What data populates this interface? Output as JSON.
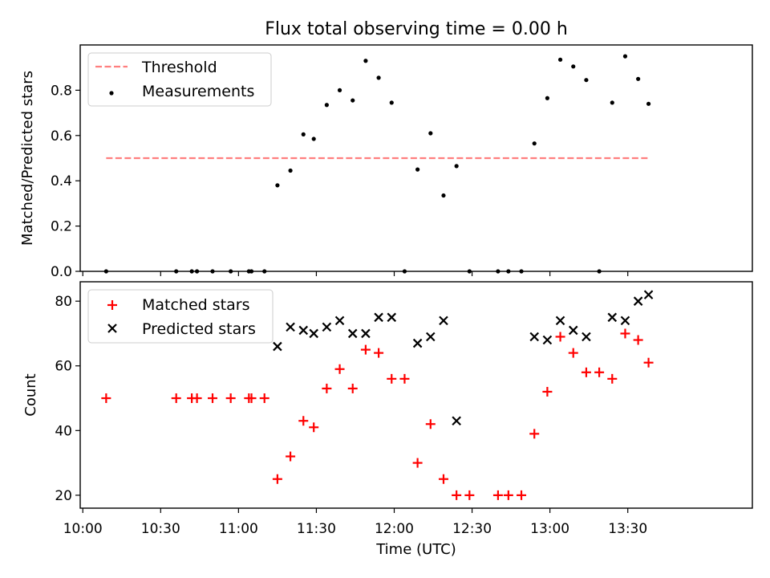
{
  "chart_data": {
    "title": "Flux total observing time = 0.00 h",
    "xlabel": "Time (UTC)",
    "x_ticks": [
      "10:00",
      "10:30",
      "11:00",
      "11:30",
      "12:00",
      "12:30",
      "13:00",
      "13:30"
    ],
    "x_range": [
      "09:59",
      "14:18"
    ],
    "panels": [
      {
        "type": "scatter",
        "ylabel": "Matched/Predicted stars",
        "ylim": [
          0,
          1.0
        ],
        "y_ticks": [
          "0.0",
          "0.2",
          "0.4",
          "0.6",
          "0.8"
        ],
        "legend": {
          "placement": "top-left"
        },
        "series": [
          {
            "name": "Threshold",
            "style": "dashed-line",
            "color": "#ff7f7f",
            "x": [
              "10:09",
              "13:38"
            ],
            "y": [
              0.5,
              0.5
            ]
          },
          {
            "name": "Measurements",
            "style": "dot",
            "color": "#000000",
            "x": [
              "10:09",
              "10:36",
              "10:42",
              "10:44",
              "10:50",
              "10:57",
              "11:04",
              "11:05",
              "11:10",
              "11:15",
              "11:20",
              "11:25",
              "11:29",
              "11:34",
              "11:39",
              "11:44",
              "11:49",
              "11:54",
              "11:59",
              "12:04",
              "12:09",
              "12:14",
              "12:19",
              "12:24",
              "12:29",
              "12:40",
              "12:44",
              "12:49",
              "12:54",
              "12:59",
              "13:04",
              "13:09",
              "13:14",
              "13:19",
              "13:24",
              "13:29",
              "13:34",
              "13:38"
            ],
            "y": [
              0.0,
              0.0,
              0.0,
              0.0,
              0.0,
              0.0,
              0.0,
              0.0,
              0.0,
              0.38,
              0.445,
              0.605,
              0.585,
              0.735,
              0.8,
              0.755,
              0.93,
              0.855,
              0.745,
              0.0,
              0.45,
              0.61,
              0.335,
              0.465,
              0.0,
              0.0,
              0.0,
              0.0,
              0.565,
              0.765,
              0.935,
              0.905,
              0.845,
              0.0,
              0.745,
              0.95,
              0.85,
              0.74
            ]
          }
        ]
      },
      {
        "type": "scatter",
        "ylabel": "Count",
        "ylim": [
          16,
          86
        ],
        "y_ticks": [
          "20",
          "40",
          "60",
          "80"
        ],
        "legend": {
          "placement": "top-left"
        },
        "series": [
          {
            "name": "Matched stars",
            "marker": "+",
            "color": "#ff0000",
            "x": [
              "10:09",
              "10:36",
              "10:42",
              "10:44",
              "10:50",
              "10:57",
              "11:04",
              "11:05",
              "11:10",
              "11:15",
              "11:20",
              "11:25",
              "11:29",
              "11:34",
              "11:39",
              "11:44",
              "11:49",
              "11:54",
              "11:59",
              "12:04",
              "12:09",
              "12:14",
              "12:19",
              "12:24",
              "12:29",
              "12:40",
              "12:44",
              "12:49",
              "12:54",
              "12:59",
              "13:04",
              "13:09",
              "13:14",
              "13:19",
              "13:24",
              "13:29",
              "13:34",
              "13:38"
            ],
            "y": [
              50,
              50,
              50,
              50,
              50,
              50,
              50,
              50,
              50,
              25,
              32,
              43,
              41,
              53,
              59,
              53,
              65,
              64,
              56,
              56,
              30,
              42,
              25,
              20,
              20,
              20,
              20,
              20,
              39,
              52,
              69,
              64,
              58,
              58,
              56,
              70,
              68,
              61
            ]
          },
          {
            "name": "Predicted stars",
            "marker": "x",
            "color": "#000000",
            "x": [
              "11:15",
              "11:20",
              "11:25",
              "11:29",
              "11:34",
              "11:39",
              "11:44",
              "11:49",
              "11:54",
              "11:59",
              "12:09",
              "12:14",
              "12:19",
              "12:24",
              "12:54",
              "12:59",
              "13:04",
              "13:09",
              "13:14",
              "13:24",
              "13:29",
              "13:34",
              "13:38"
            ],
            "y": [
              66,
              72,
              71,
              70,
              72,
              74,
              70,
              70,
              75,
              75,
              67,
              69,
              74,
              43,
              69,
              68,
              74,
              71,
              69,
              75,
              74,
              80,
              82
            ]
          }
        ]
      }
    ]
  }
}
